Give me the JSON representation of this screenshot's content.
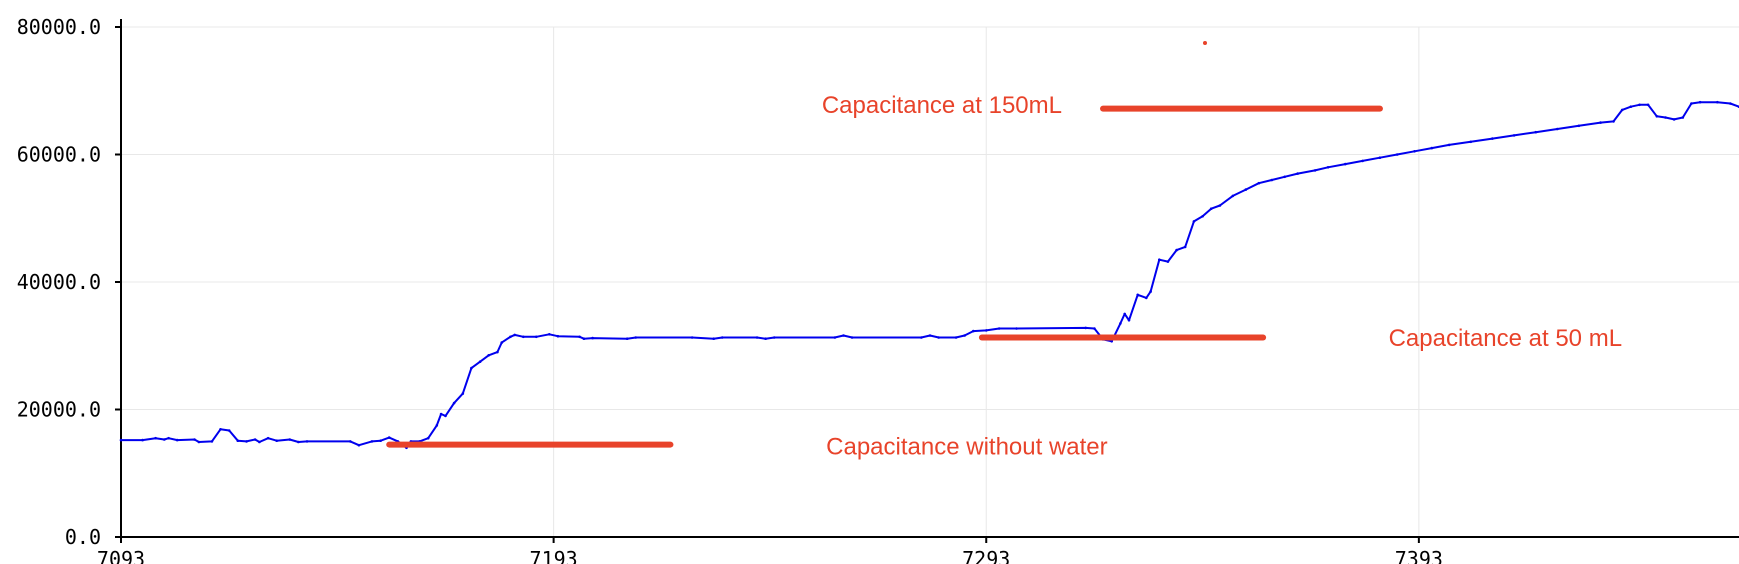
{
  "chart_data": {
    "type": "line",
    "title": "",
    "xlabel": "",
    "ylabel": "",
    "xlim": [
      7093,
      7467
    ],
    "ylim": [
      0,
      80000
    ],
    "x_ticks": [
      7093,
      7193,
      7293,
      7393
    ],
    "x_tick_labels": [
      "7093",
      "7193",
      "7293",
      "7393"
    ],
    "y_ticks": [
      0,
      20000,
      40000,
      60000,
      80000
    ],
    "y_tick_labels": [
      "0.0",
      "20000.0",
      "40000.0",
      "60000.0",
      "80000.0"
    ],
    "grid": true,
    "legend": "none",
    "colors": {
      "series": "#0000ee",
      "annotation": "#e8432a",
      "grid": "#e8e8e8",
      "axis": "#000000"
    },
    "series": [
      {
        "points": [
          [
            7093,
            15200
          ],
          [
            7098,
            15200
          ],
          [
            7101,
            15500
          ],
          [
            7103,
            15300
          ],
          [
            7104,
            15500
          ],
          [
            7106,
            15200
          ],
          [
            7110,
            15300
          ],
          [
            7111,
            14900
          ],
          [
            7114,
            15000
          ],
          [
            7116,
            16900
          ],
          [
            7118,
            16700
          ],
          [
            7120,
            15100
          ],
          [
            7122,
            15000
          ],
          [
            7124,
            15300
          ],
          [
            7125,
            14900
          ],
          [
            7127,
            15500
          ],
          [
            7129,
            15100
          ],
          [
            7132,
            15300
          ],
          [
            7134,
            14900
          ],
          [
            7136,
            15000
          ],
          [
            7146,
            15000
          ],
          [
            7148,
            14400
          ],
          [
            7151,
            15000
          ],
          [
            7153,
            15100
          ],
          [
            7155,
            15600
          ],
          [
            7157,
            15000
          ],
          [
            7159,
            14000
          ],
          [
            7160,
            15000
          ],
          [
            7162,
            15000
          ],
          [
            7164,
            15500
          ],
          [
            7166,
            17500
          ],
          [
            7167,
            19300
          ],
          [
            7168,
            19000
          ],
          [
            7170,
            21000
          ],
          [
            7172,
            22500
          ],
          [
            7174,
            26500
          ],
          [
            7176,
            27500
          ],
          [
            7178,
            28500
          ],
          [
            7180,
            29000
          ],
          [
            7181,
            30500
          ],
          [
            7183,
            31400
          ],
          [
            7184,
            31700
          ],
          [
            7186,
            31400
          ],
          [
            7189,
            31400
          ],
          [
            7192,
            31800
          ],
          [
            7194,
            31500
          ],
          [
            7199,
            31400
          ],
          [
            7200,
            31100
          ],
          [
            7202,
            31200
          ],
          [
            7210,
            31100
          ],
          [
            7212,
            31300
          ],
          [
            7225,
            31300
          ],
          [
            7230,
            31100
          ],
          [
            7232,
            31300
          ],
          [
            7240,
            31300
          ],
          [
            7242,
            31100
          ],
          [
            7244,
            31300
          ],
          [
            7258,
            31300
          ],
          [
            7260,
            31600
          ],
          [
            7262,
            31300
          ],
          [
            7278,
            31300
          ],
          [
            7280,
            31600
          ],
          [
            7282,
            31300
          ],
          [
            7286,
            31300
          ],
          [
            7288,
            31600
          ],
          [
            7290,
            32300
          ],
          [
            7293,
            32400
          ],
          [
            7296,
            32700
          ],
          [
            7300,
            32700
          ],
          [
            7316,
            32800
          ],
          [
            7318,
            32700
          ],
          [
            7320,
            31000
          ],
          [
            7322,
            30700
          ],
          [
            7324,
            33500
          ],
          [
            7325,
            35000
          ],
          [
            7326,
            34000
          ],
          [
            7328,
            38000
          ],
          [
            7330,
            37500
          ],
          [
            7331,
            38500
          ],
          [
            7333,
            43500
          ],
          [
            7335,
            43200
          ],
          [
            7337,
            45000
          ],
          [
            7339,
            45500
          ],
          [
            7341,
            49500
          ],
          [
            7343,
            50300
          ],
          [
            7345,
            51500
          ],
          [
            7347,
            52000
          ],
          [
            7350,
            53500
          ],
          [
            7353,
            54500
          ],
          [
            7356,
            55500
          ],
          [
            7359,
            56000
          ],
          [
            7362,
            56500
          ],
          [
            7365,
            57000
          ],
          [
            7369,
            57500
          ],
          [
            7372,
            58000
          ],
          [
            7376,
            58500
          ],
          [
            7380,
            59000
          ],
          [
            7384,
            59500
          ],
          [
            7388,
            60000
          ],
          [
            7392,
            60500
          ],
          [
            7396,
            61000
          ],
          [
            7400,
            61500
          ],
          [
            7405,
            62000
          ],
          [
            7410,
            62500
          ],
          [
            7415,
            63000
          ],
          [
            7420,
            63500
          ],
          [
            7425,
            64000
          ],
          [
            7430,
            64500
          ],
          [
            7435,
            65000
          ],
          [
            7438,
            65200
          ],
          [
            7440,
            67000
          ],
          [
            7442,
            67500
          ],
          [
            7444,
            67800
          ],
          [
            7446,
            67800
          ],
          [
            7448,
            66000
          ],
          [
            7450,
            65800
          ],
          [
            7452,
            65500
          ],
          [
            7454,
            65800
          ],
          [
            7456,
            68000
          ],
          [
            7458,
            68200
          ],
          [
            7462,
            68200
          ],
          [
            7465,
            68000
          ],
          [
            7467,
            67500
          ]
        ]
      }
    ],
    "annotations": [
      {
        "text": "Capacitance at 150mL",
        "x": 7255,
        "y": 67800,
        "line_x": [
          7320,
          7384
        ],
        "line_y": 67200
      },
      {
        "text": "Capacitance at 50 mL",
        "x": 7386,
        "y": 31200,
        "line_x": [
          7292,
          7357
        ],
        "line_y": 31300
      },
      {
        "text": "Capacitance without water",
        "x": 7256,
        "y": 14200,
        "line_x": [
          7155,
          7220
        ],
        "line_y": 14500
      }
    ]
  }
}
